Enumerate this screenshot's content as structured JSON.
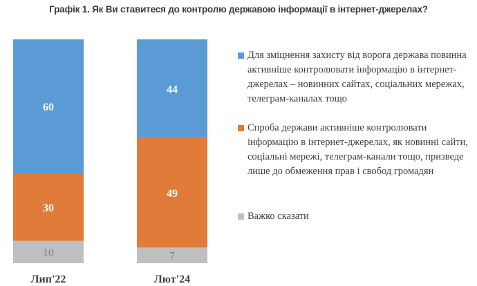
{
  "chart_data": {
    "type": "bar",
    "stacked": true,
    "title": "Графік 1. Як Ви ставитеся до контролю державою інформації в інтернет-джерелах?",
    "categories": [
      "Лип'22",
      "Лют'24"
    ],
    "series": [
      {
        "name": "Для зміцнення захисту від ворога держава повинна активніше контролювати інформацію в інтернет-джерелах – новинних сайтах, соціальних мережах, телеграм-каналах тощо",
        "color": "#5b9bd5",
        "values": [
          60,
          44
        ]
      },
      {
        "name": "Спроба держави активніше контролювати інформацію в інтернет-джерелах, як новинні сайти, соціальні мережі, телеграм-канали тощо, призведе лише до обмеження прав і свобод громадян",
        "color": "#e07b3a",
        "values": [
          30,
          49
        ]
      },
      {
        "name": "Важко сказати",
        "color": "#bfbfbf",
        "values": [
          10,
          7
        ]
      }
    ],
    "ylim": [
      0,
      100
    ],
    "legend": "right"
  }
}
